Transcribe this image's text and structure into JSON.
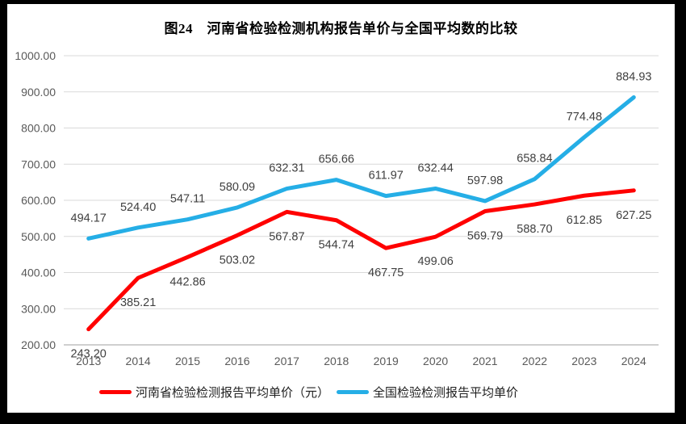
{
  "chart_data": {
    "type": "line",
    "title": "图24　河南省检验检测机构报告单价与全国平均数的比较",
    "categories": [
      "2013",
      "2014",
      "2015",
      "2016",
      "2017",
      "2018",
      "2019",
      "2020",
      "2021",
      "2022",
      "2023",
      "2024"
    ],
    "series": [
      {
        "name": "河南省检验检测报告平均单价（元）",
        "color": "#FF0000",
        "label_position": "below",
        "values": [
          243.2,
          385.21,
          442.86,
          503.02,
          567.87,
          544.74,
          467.75,
          499.06,
          569.79,
          588.7,
          612.85,
          627.25
        ]
      },
      {
        "name": "全国检验检测报告平均单价",
        "color": "#25AEE6",
        "label_position": "above",
        "values": [
          494.17,
          524.4,
          547.11,
          580.09,
          632.31,
          656.66,
          611.97,
          632.44,
          597.98,
          658.84,
          774.48,
          884.93
        ]
      }
    ],
    "xlabel": "",
    "ylabel": "",
    "ylim": [
      200,
      1000
    ],
    "ytick_step": 100,
    "ytick_format_decimals": 2,
    "grid": "horizontal",
    "legend_position": "bottom",
    "colors": {
      "gridline": "#D9D9D9",
      "axis_line": "#BFBFBF",
      "tick_label": "#595959",
      "data_label": "#404040",
      "background": "#FFFFFF",
      "frame": "#000000"
    }
  }
}
